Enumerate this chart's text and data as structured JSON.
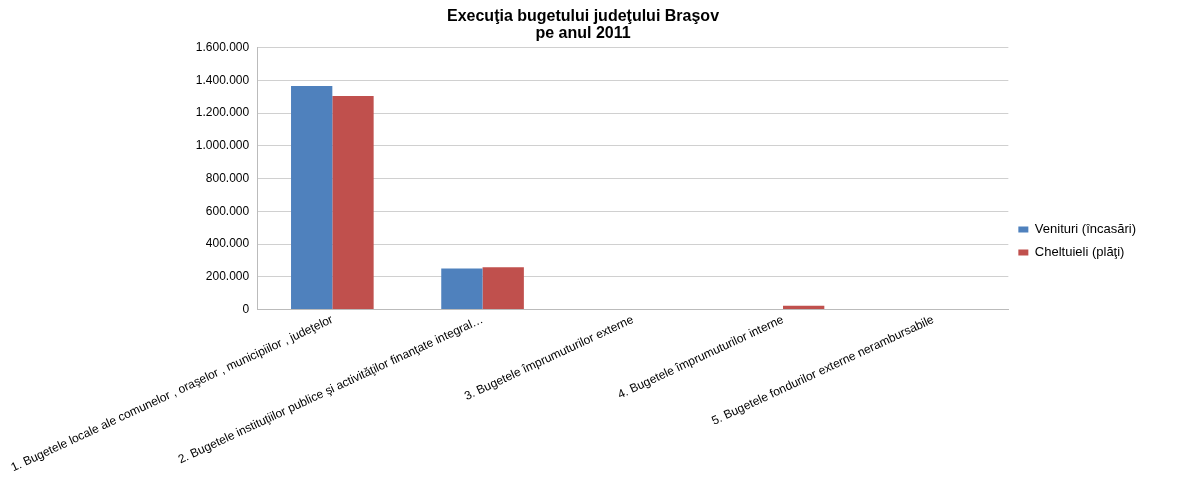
{
  "chart_data": {
    "type": "bar",
    "title": "Execuţia bugetului judeţului Braşov\npe anul 2011",
    "categories": [
      "1. Bugetele locale ale comunelor , oraşelor , municipiilor , judeţelor",
      "2. Bugetele instituţiilor publice şi activităţilor finanţate integral…",
      "3. Bugetele împrumuturilor externe",
      "4. Bugetele împrumuturilor interne",
      "5. Bugetele fondurilor externe nerambursabile"
    ],
    "series": [
      {
        "name": "Venituri (încasări)",
        "color": "#4f81bd",
        "values": [
          1365000,
          250000,
          0,
          0,
          0
        ]
      },
      {
        "name": "Cheltuieli (plăţi)",
        "color": "#c0504d",
        "values": [
          1305000,
          258000,
          0,
          23000,
          0
        ]
      }
    ],
    "ylim": [
      0,
      1600000
    ],
    "yticks": [
      {
        "value": 0,
        "label": "0"
      },
      {
        "value": 200000,
        "label": "200.000"
      },
      {
        "value": 400000,
        "label": "400.000"
      },
      {
        "value": 600000,
        "label": "600.000"
      },
      {
        "value": 800000,
        "label": "800.000"
      },
      {
        "value": 1000000,
        "label": "1.000.000"
      },
      {
        "value": 1200000,
        "label": "1.200.000"
      },
      {
        "value": 1400000,
        "label": "1.400.000"
      },
      {
        "value": 1600000,
        "label": "1.600.000"
      }
    ],
    "grid": "y",
    "legend": "right"
  }
}
